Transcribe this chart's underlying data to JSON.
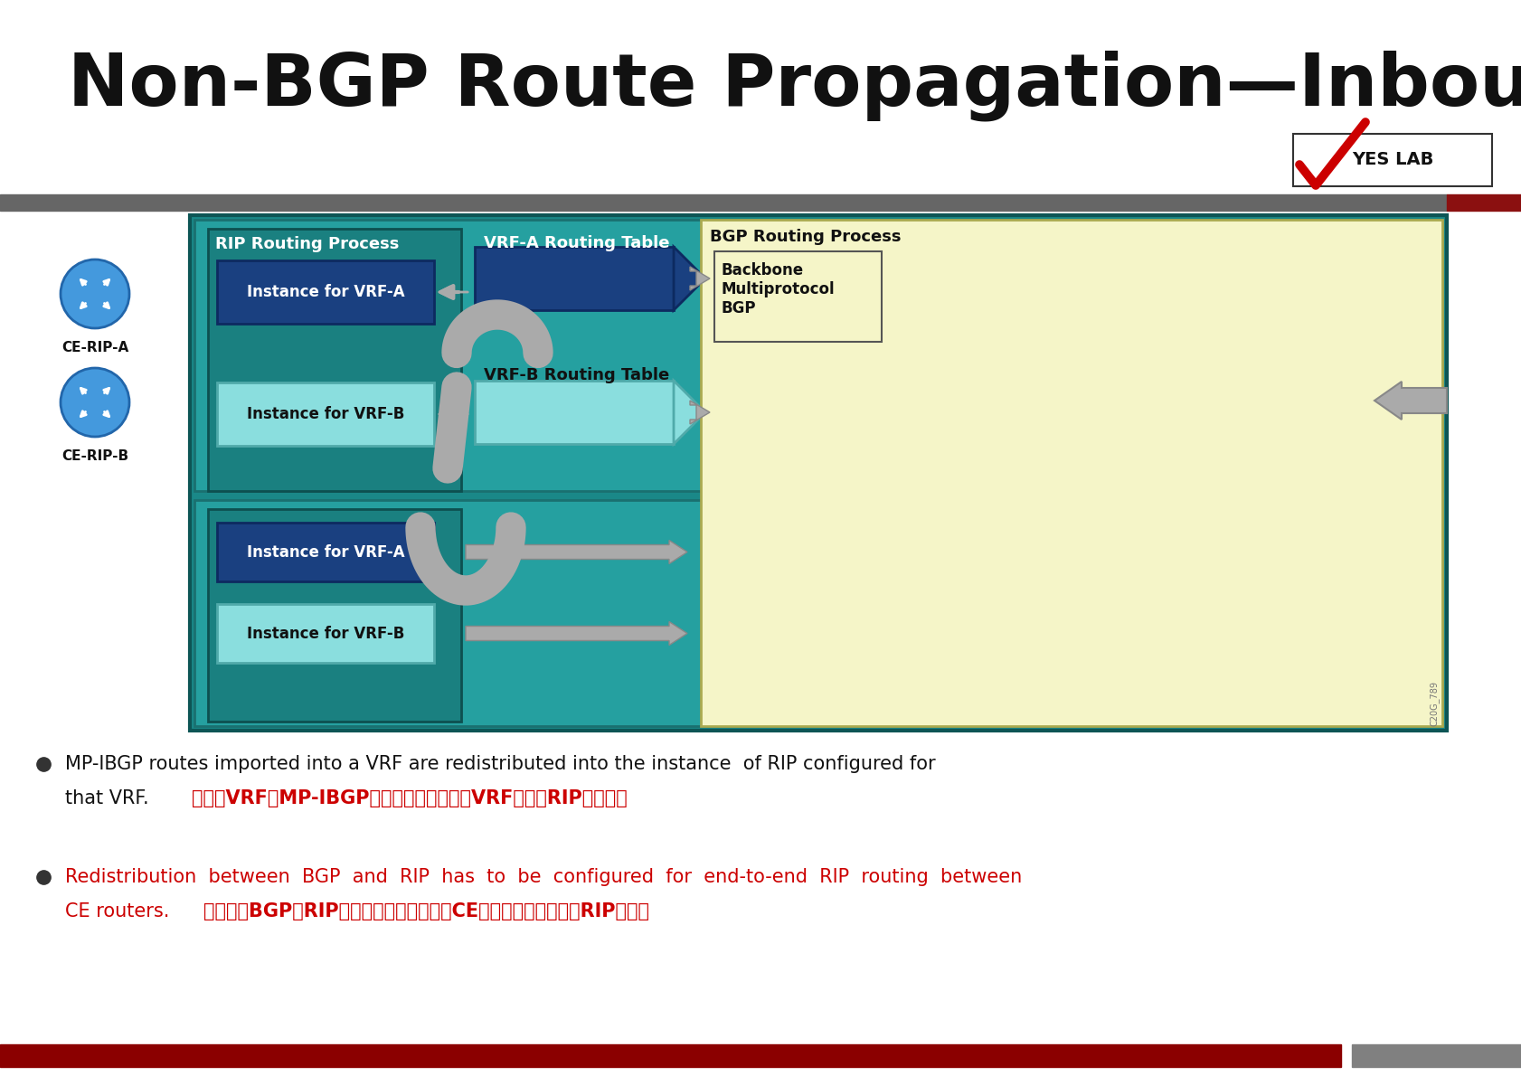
{
  "title": "Non-BGP Route Propagation—Inbound",
  "bg_color": "#ffffff",
  "header_bar_color": "#666666",
  "header_bar2_color": "#8B0000",
  "footer_bar_left_color": "#8B0000",
  "footer_bar_right_color": "#808080",
  "diagram_outer_bg": "#1a8080",
  "diagram_inner_teal": "#2aacac",
  "rip_section_bg": "#1a7878",
  "vrf_a_bg": "#1a4080",
  "vrf_b_bg": "#8adede",
  "bgp_section_bg": "#f5f5c8",
  "inst_vrfa_color": "#1a4080",
  "inst_vrfb_color": "#8adede",
  "backbone_bg": "#f5f5c8",
  "arrow_color": "#aaaaaa",
  "arrow_edge": "#888888",
  "bullet1_en1": "MP-IBGP routes imported into a VRF are redistributed into the instance  of RIP configured for",
  "bullet1_en2": "that VRF.",
  "bullet1_cn": "引入到VRF的MP-IBGP路由重新分配到为该VRF配置的RIP实例中。",
  "bullet2_en1": "Redistribution  between  BGP  and  RIP  has  to  be  configured  for  end-to-end  RIP  routing  between",
  "bullet2_en2": "CE routers.",
  "bullet2_cn": "必须配置BGP和RIP之间的重新分配，用于CE路由器之间的端到端RIP路由。",
  "watermark": "C20G_789"
}
